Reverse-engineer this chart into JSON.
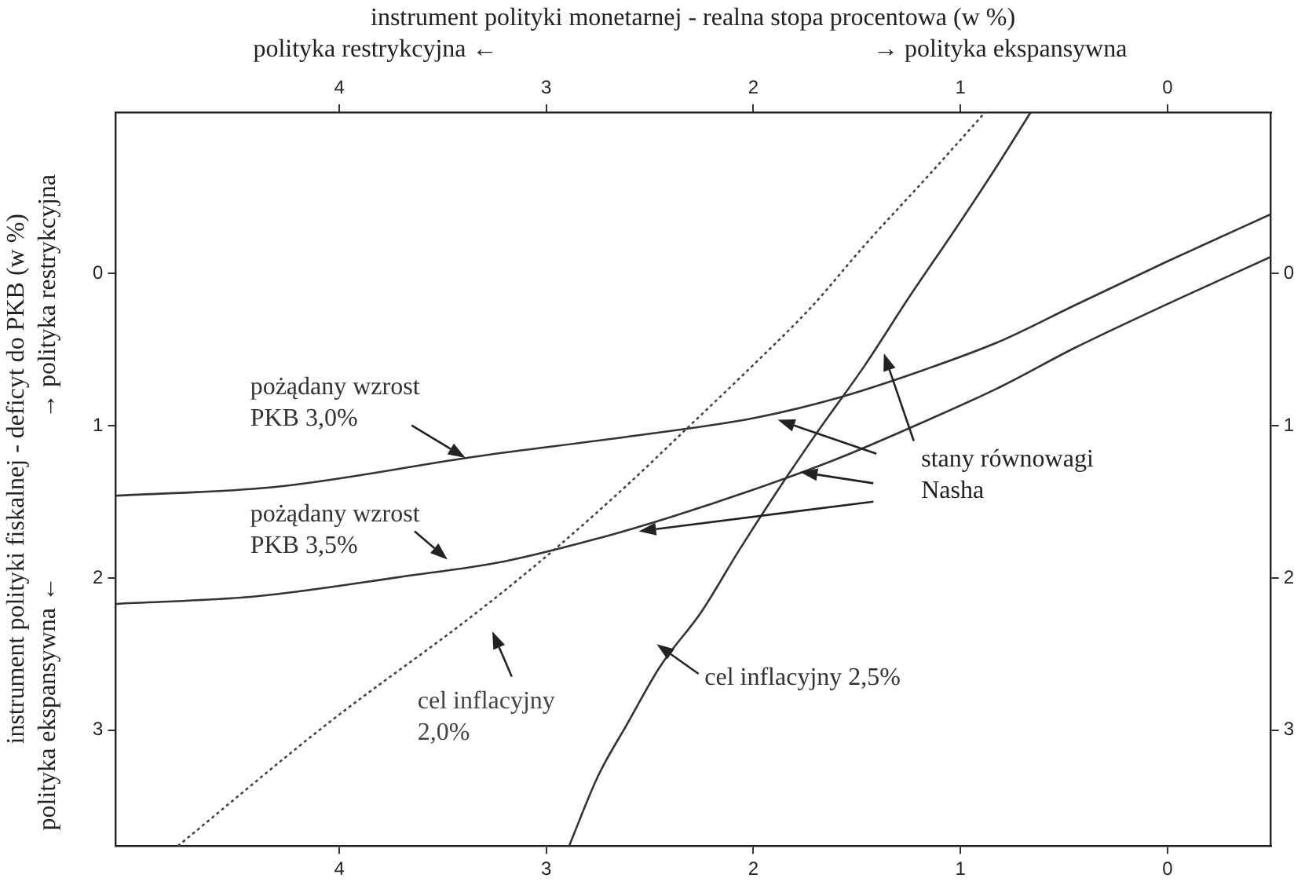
{
  "chart_data": {
    "type": "line",
    "x2label": "instrument polityki monetarnej - realna stopa procentowa (w %)",
    "ylabel": "instrument polityki fiskalnej - deficyt do PKB (w %)",
    "xlim": [
      5.08,
      -0.5
    ],
    "xticks": [
      4,
      3,
      2,
      1,
      0
    ],
    "x2lim": [
      5.08,
      -0.5
    ],
    "x2ticks": [
      4,
      3,
      2,
      1,
      0
    ],
    "ylim": [
      3.76,
      -1.06
    ],
    "yticks": [
      0,
      1,
      2,
      3
    ],
    "y2lim": [
      3.76,
      -1.06
    ],
    "y2ticks": [
      0,
      1,
      2,
      3
    ],
    "grid": false,
    "legend": false,
    "marker": "none",
    "series": [
      {
        "name": "pożądany wzrost PKB 3,0%",
        "color": "#333333",
        "line_style": "solid",
        "x": [
          5.08,
          4.3,
          3.33,
          2.6,
          2,
          1.6,
          1.17,
          0.8,
          0.45,
          0,
          -0.5
        ],
        "values": [
          1.46,
          1.4,
          1.2,
          1.07,
          0.95,
          0.82,
          0.63,
          0.44,
          0.21,
          -0.08,
          -0.39
        ]
      },
      {
        "name": "pożądany wzrost PKB 3,5%",
        "color": "#333333",
        "line_style": "solid",
        "x": [
          5.08,
          4.4,
          3.69,
          3.2,
          2.75,
          2.4,
          2,
          1.6,
          1.17,
          0.8,
          0.45,
          0,
          -0.5
        ],
        "values": [
          2.17,
          2.12,
          1.99,
          1.89,
          1.74,
          1.6,
          1.42,
          1.22,
          0.97,
          0.74,
          0.49,
          0.2,
          -0.11
        ]
      },
      {
        "name": "cel inflacyjny 2,0%",
        "color": "#444444",
        "line_style": "dotted",
        "x": [
          4.78,
          4.06,
          3.33,
          2.95,
          2.61,
          2.3,
          2,
          1.72,
          1.46,
          1.17,
          0.88
        ],
        "values": [
          3.76,
          2.96,
          2.22,
          1.8,
          1.39,
          0.99,
          0.6,
          0.22,
          -0.19,
          -0.62,
          -1.06
        ]
      },
      {
        "name": "cel inflacyjny 2,5%",
        "color": "#333333",
        "line_style": "solid",
        "x": [
          2.89,
          2.75,
          2.61,
          2.45,
          2.25,
          2.07,
          1.89,
          1.68,
          1.46,
          1.25,
          1.03,
          0.85,
          0.66
        ],
        "values": [
          3.76,
          3.3,
          2.96,
          2.58,
          2.22,
          1.82,
          1.44,
          1.02,
          0.6,
          0.16,
          -0.28,
          -0.65,
          -1.06
        ]
      }
    ],
    "annotations": [
      "polityka restrykcyjna ←",
      "→ polityka ekspansywna",
      "stany równowagi Nasha",
      "polityka ekspansywna ←",
      "→ polityka restrykcyjna"
    ]
  }
}
